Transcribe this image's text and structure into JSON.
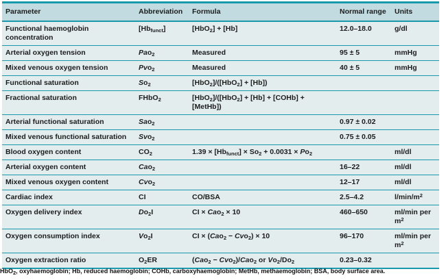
{
  "colors": {
    "rule": "#1898ab",
    "header_bg": "#c1dbe0",
    "body_bg": "#e4edee",
    "text": "#1c1c1c"
  },
  "table": {
    "headers": {
      "parameter": "Parameter",
      "abbreviation": "Abbreviation",
      "formula": "Formula",
      "normal_range": "Normal range",
      "units": "Units"
    },
    "rows": [
      {
        "parameter": "Functional haemoglobin concentration",
        "abbreviation": "[Hb<sub>funct</sub>]",
        "formula": "[HbO<sub>2</sub>] + [Hb]",
        "normal_range": "12.0–18.0",
        "units": "g/dl"
      },
      {
        "parameter": "Arterial oxygen tension",
        "abbreviation": "<i>Pa</i>o<sub>2</sub>",
        "formula": "Measured",
        "normal_range": "95 ± 5",
        "units": "mmHg"
      },
      {
        "parameter": "Mixed venous oxygen tension",
        "abbreviation": "<i>Pv</i>o<sub>2</sub>",
        "formula": "Measured",
        "normal_range": "40 ± 5",
        "units": "mmHg"
      },
      {
        "parameter": "Functional saturation",
        "abbreviation": "<i>S</i>o<sub>2</sub>",
        "formula": "[HbO<sub>2</sub>]/([HbO<sub>2</sub>] + [Hb])",
        "normal_range": "",
        "units": ""
      },
      {
        "parameter": "Fractional saturation",
        "abbreviation": "FHbO<sub>2</sub>",
        "formula": "[HbO<sub>2</sub>]/([HbO<sub>2</sub>] + [Hb] + [COHb] + [MetHb])",
        "normal_range": "",
        "units": ""
      },
      {
        "parameter": "Arterial functional saturation",
        "abbreviation": "<i>Sa</i>o<sub>2</sub>",
        "formula": "",
        "normal_range": "0.97 ± 0.02",
        "units": ""
      },
      {
        "parameter": "Mixed venous functional saturation",
        "abbreviation": "<i>Sv</i>o<sub>2</sub>",
        "formula": "",
        "normal_range": "0.75 ± 0.05",
        "units": ""
      },
      {
        "parameter": "Blood oxygen content",
        "abbreviation": "CO<sub>2</sub>",
        "formula": "1.39 × [Hb<sub>funct</sub>] × So<sub>2</sub> + 0.0031 × <i>P</i>o<sub>2</sub>",
        "normal_range": "",
        "units": "ml/dl"
      },
      {
        "parameter": "Arterial oxygen content",
        "abbreviation": "<i>Ca</i>o<sub>2</sub>",
        "formula": "",
        "normal_range": "16–22",
        "units": "ml/dl"
      },
      {
        "parameter": "Mixed venous oxygen content",
        "abbreviation": "<i>Cv</i>o<sub>2</sub>",
        "formula": "",
        "normal_range": "12–17",
        "units": "ml/dl"
      },
      {
        "parameter": "Cardiac index",
        "abbreviation": "CI",
        "formula": "CO/BSA",
        "normal_range": "2.5–4.2",
        "units": "l/min/m<sup>2</sup>"
      },
      {
        "parameter": "Oxygen delivery index",
        "abbreviation": "<i>D</i>o<sub>2</sub>I",
        "formula": "CI × <i>Ca</i>o<sub>2</sub> × 10",
        "normal_range": "460–650",
        "units": "ml/min per m<sup>2</sup>"
      },
      {
        "parameter": "Oxygen consumption index",
        "abbreviation": "<i>V</i>o<sub>2</sub>I",
        "formula": "CI × (<i>Ca</i>o<sub>2</sub> − <i>Cv</i>o<sub>2</sub>) × 10",
        "normal_range": "96–170",
        "units": "ml/min per m<sup>2</sup>"
      },
      {
        "parameter": "Oxygen extraction ratio",
        "abbreviation": "O<sub>2</sub>ER",
        "formula": "(<i>Ca</i>o<sub>2</sub> − <i>Cv</i>o<sub>2</sub>)/<i>Ca</i>o<sub>2</sub> or <i>V</i>o<sub>2</sub>/Do<sub>2</sub>",
        "normal_range": "0.23–0.32",
        "units": ""
      }
    ],
    "footnote": "HbO<sub>2</sub>, oxyhaemoglobin; Hb, reduced haemoglobin; COHb, carboxyhaemoglobin; MetHb, methaemoglobin; BSA, body surface area."
  }
}
